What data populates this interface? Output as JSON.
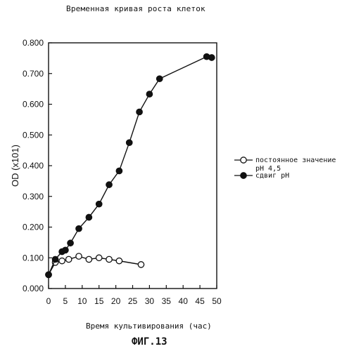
{
  "title": "Временная кривая роста клеток",
  "figure_label": "ФИГ.13",
  "chart_data": {
    "type": "line",
    "title": "Временная кривая роста клеток",
    "xlabel": "Время культивирования (час)",
    "ylabel": "OD (x101)",
    "xlim": [
      0,
      50
    ],
    "ylim": [
      0,
      0.8
    ],
    "x_ticks": [
      "0",
      "5",
      "10",
      "15",
      "20",
      "25",
      "30",
      "35",
      "40",
      "45",
      "50"
    ],
    "y_ticks": [
      "0.000",
      "0.100",
      "0.200",
      "0.300",
      "0.400",
      "0.500",
      "0.600",
      "0.700",
      "0.800"
    ],
    "grid": false,
    "legend": "right",
    "series": [
      {
        "name": "постоянное значение pH 4,5",
        "marker": "open-circle",
        "color": "#111111",
        "x": [
          0,
          2,
          4,
          6,
          9,
          12,
          15,
          18,
          21,
          27.5
        ],
        "y": [
          0.045,
          0.085,
          0.09,
          0.095,
          0.105,
          0.095,
          0.1,
          0.095,
          0.09,
          0.078
        ]
      },
      {
        "name": "сдвиг pH",
        "marker": "filled-circle",
        "color": "#111111",
        "x": [
          0,
          2,
          4,
          5,
          6.5,
          9,
          12,
          15,
          18,
          21,
          24,
          27,
          30,
          33,
          47,
          48.5
        ],
        "y": [
          0.045,
          0.095,
          0.12,
          0.125,
          0.148,
          0.195,
          0.232,
          0.275,
          0.338,
          0.383,
          0.475,
          0.575,
          0.633,
          0.683,
          0.755,
          0.752
        ]
      }
    ]
  }
}
